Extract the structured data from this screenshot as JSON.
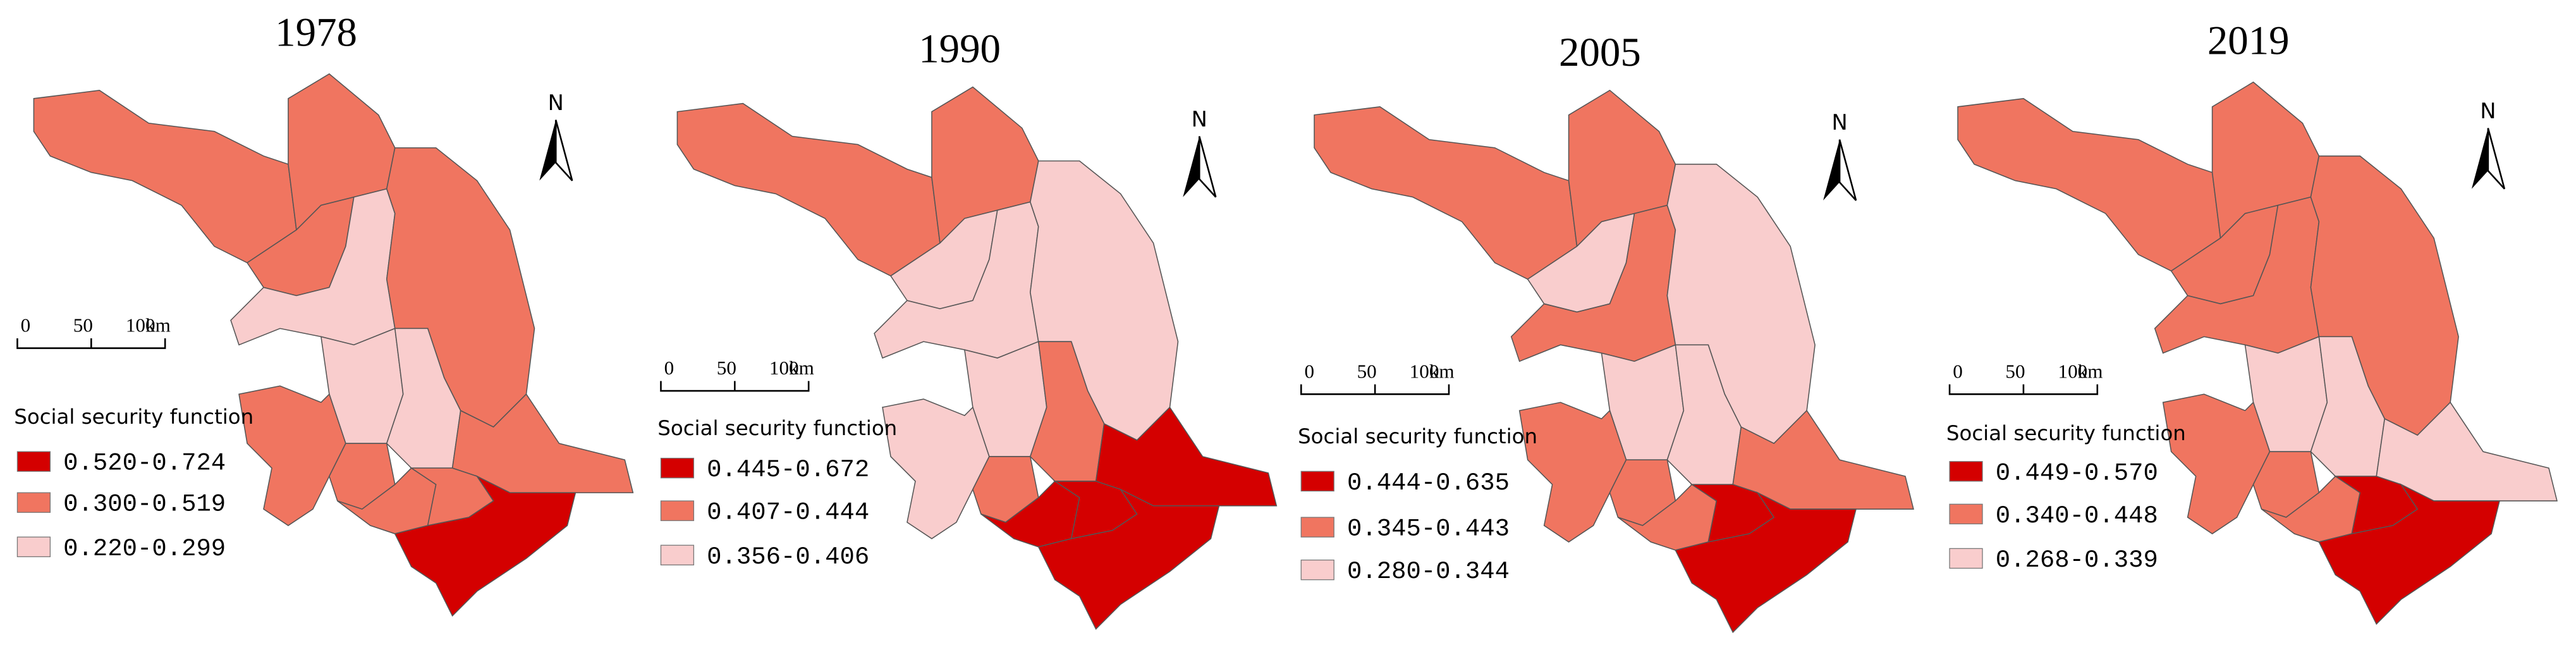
{
  "panels": [
    {
      "year": "1978",
      "north": "N",
      "scale_labels": [
        "0",
        "50",
        "100"
      ],
      "scale_unit": "km",
      "legend_title": "Social security function",
      "legend": [
        {
          "label": "0.520-0.724",
          "color": "#d40000"
        },
        {
          "label": "0.300-0.519",
          "color": "#f07560"
        },
        {
          "label": "0.220-0.299",
          "color": "#f9cdcd"
        }
      ],
      "region_colors": [
        "#f07560",
        "#f07560",
        "#f07560",
        "#f9cdcd",
        "#f07560",
        "#f9cdcd",
        "#f9cdcd",
        "#f07560",
        "#f07560",
        "#f07560",
        "#f07560",
        "#f07560",
        "#d40000"
      ]
    },
    {
      "year": "1990",
      "north": "N",
      "scale_labels": [
        "0",
        "50",
        "100"
      ],
      "scale_unit": "km",
      "legend_title": "Social security function",
      "legend": [
        {
          "label": "0.445-0.672",
          "color": "#d40000"
        },
        {
          "label": "0.407-0.444",
          "color": "#f07560"
        },
        {
          "label": "0.356-0.406",
          "color": "#f9cdcd"
        }
      ],
      "region_colors": [
        "#f07560",
        "#f07560",
        "#f9cdcd",
        "#f9cdcd",
        "#f9cdcd",
        "#f9cdcd",
        "#f07560",
        "#d40000",
        "#f9cdcd",
        "#f07560",
        "#d40000",
        "#d40000",
        "#d40000"
      ]
    },
    {
      "year": "2005",
      "north": "N",
      "scale_labels": [
        "0",
        "50",
        "100"
      ],
      "scale_unit": "km",
      "legend_title": "Social security function",
      "legend": [
        {
          "label": "0.444-0.635",
          "color": "#d40000"
        },
        {
          "label": "0.345-0.443",
          "color": "#f07560"
        },
        {
          "label": "0.280-0.344",
          "color": "#f9cdcd"
        }
      ],
      "region_colors": [
        "#f07560",
        "#f07560",
        "#f9cdcd",
        "#f07560",
        "#f9cdcd",
        "#f9cdcd",
        "#f9cdcd",
        "#f07560",
        "#f07560",
        "#f07560",
        "#f07560",
        "#d40000",
        "#d40000"
      ]
    },
    {
      "year": "2019",
      "north": "N",
      "scale_labels": [
        "0",
        "50",
        "100"
      ],
      "scale_unit": "km",
      "legend_title": "Social security function",
      "legend": [
        {
          "label": "0.449-0.570",
          "color": "#d40000"
        },
        {
          "label": "0.340-0.448",
          "color": "#f07560"
        },
        {
          "label": "0.268-0.339",
          "color": "#f9cdcd"
        }
      ],
      "region_colors": [
        "#f07560",
        "#f07560",
        "#f07560",
        "#f07560",
        "#f07560",
        "#f9cdcd",
        "#f9cdcd",
        "#f9cdcd",
        "#f07560",
        "#f07560",
        "#f07560",
        "#d40000",
        "#d40000"
      ]
    }
  ]
}
